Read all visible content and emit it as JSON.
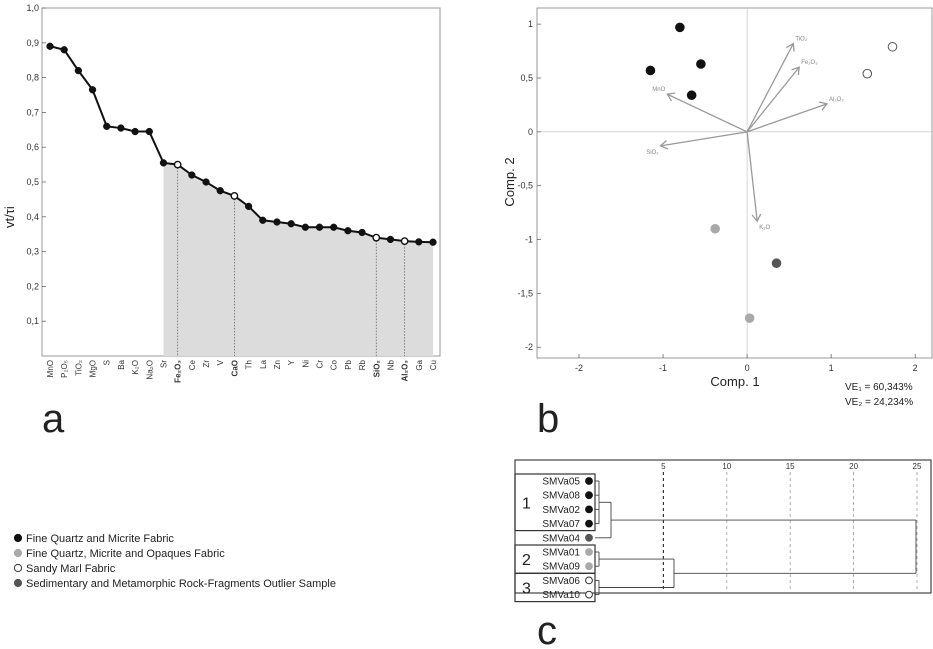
{
  "panels": {
    "a_letter": "a",
    "b_letter": "b",
    "c_letter": "c"
  },
  "colors": {
    "fine_quartz_micrite": "#111111",
    "fine_quartz_opaques": "#a9a9a9",
    "sandy_marl": "#ffffff",
    "outlier": "#555555",
    "shade": "#dcdcdc",
    "vector": "#999999"
  },
  "legend": [
    {
      "label": "Fine Quartz and Micrite Fabric",
      "fill": "#111111"
    },
    {
      "label": "Fine Quartz, Micrite and Opaques Fabric",
      "fill": "#a9a9a9"
    },
    {
      "label": "Sandy Marl Fabric",
      "fill": "#ffffff"
    },
    {
      "label": "Sedimentary and Metamorphic Rock-Fragments Outlier Sample",
      "fill": "#555555"
    }
  ],
  "chart_data": [
    {
      "type": "line",
      "panel": "a",
      "ylabel": "vt/τi",
      "ylim": [
        0,
        1.0
      ],
      "yticks": [
        "1,0",
        "0,9",
        "0,8",
        "0,7",
        "0,6",
        "0,5",
        "0,4",
        "0,3",
        "0,2",
        "0,1"
      ],
      "categories": [
        "MnO",
        "P₂O₅",
        "TiO₂",
        "MgO",
        "S",
        "Ba",
        "K₂O",
        "Na₂O",
        "Sr",
        "Fe₂O₃",
        "Ce",
        "Zr",
        "V",
        "CaO",
        "Th",
        "La",
        "Zn",
        "Y",
        "Ni",
        "Cr",
        "Co",
        "Pb",
        "Rb",
        "SiO₂",
        "Nb",
        "Al₂O₃",
        "Ga",
        "Cu"
      ],
      "bold_categories": [
        "Fe₂O₃",
        "CaO",
        "SiO₂",
        "Al₂O₃"
      ],
      "values": [
        0.89,
        0.88,
        0.82,
        0.765,
        0.66,
        0.655,
        0.645,
        0.645,
        0.555,
        0.55,
        0.52,
        0.5,
        0.475,
        0.46,
        0.43,
        0.39,
        0.385,
        0.38,
        0.37,
        0.37,
        0.37,
        0.36,
        0.355,
        0.34,
        0.335,
        0.33,
        0.328,
        0.327
      ],
      "open_points": [
        9,
        13,
        23,
        25
      ],
      "shaded_from": 8
    },
    {
      "type": "scatter",
      "panel": "b",
      "xlabel": "Comp. 1",
      "ylabel": "Comp. 2",
      "xlim": [
        -2.5,
        2.2
      ],
      "ylim": [
        -2.1,
        1.15
      ],
      "xticks": [
        -2,
        -1,
        0,
        1,
        2
      ],
      "xtick_labels": [
        "-2",
        "-1",
        "0",
        "1",
        "2"
      ],
      "yticks": [
        1,
        0.5,
        0,
        -0.5,
        -1,
        -1.5,
        -2
      ],
      "ytick_labels": [
        "1",
        "0,5",
        "0",
        "-0,5",
        "-1",
        "-1,5",
        "-2"
      ],
      "points": [
        {
          "x": -0.8,
          "y": 0.97,
          "group": "fine_quartz_micrite"
        },
        {
          "x": -1.15,
          "y": 0.57,
          "group": "fine_quartz_micrite"
        },
        {
          "x": -0.55,
          "y": 0.63,
          "group": "fine_quartz_micrite"
        },
        {
          "x": -0.66,
          "y": 0.34,
          "group": "fine_quartz_micrite"
        },
        {
          "x": 1.73,
          "y": 0.79,
          "group": "sandy_marl"
        },
        {
          "x": 1.43,
          "y": 0.54,
          "group": "sandy_marl"
        },
        {
          "x": -0.38,
          "y": -0.9,
          "group": "fine_quartz_opaques"
        },
        {
          "x": 0.35,
          "y": -1.22,
          "group": "outlier"
        },
        {
          "x": 0.03,
          "y": -1.73,
          "group": "fine_quartz_opaques"
        }
      ],
      "vectors": [
        {
          "label": "TiO₂",
          "x": 0.55,
          "y": 0.82
        },
        {
          "label": "Fe₂O₃",
          "x": 0.62,
          "y": 0.6
        },
        {
          "label": "Al₂O₃",
          "x": 0.95,
          "y": 0.26
        },
        {
          "label": "MnO",
          "x": -0.95,
          "y": 0.35
        },
        {
          "label": "SiO₂",
          "x": -1.03,
          "y": -0.13
        },
        {
          "label": "K₂O",
          "x": 0.12,
          "y": -0.83
        }
      ],
      "variance_explained": [
        "VE₁ = 60,343%",
        "VE₂ = 24,234%"
      ]
    },
    {
      "type": "dendrogram",
      "panel": "c",
      "scale_ticks": [
        "5",
        "10",
        "15",
        "20",
        "25"
      ],
      "samples": [
        {
          "label": "SMVa05",
          "group": "fine_quartz_micrite"
        },
        {
          "label": "SMVa08",
          "group": "fine_quartz_micrite"
        },
        {
          "label": "SMVa02",
          "group": "fine_quartz_micrite"
        },
        {
          "label": "SMVa07",
          "group": "fine_quartz_micrite"
        },
        {
          "label": "SMVa04",
          "group": "outlier"
        },
        {
          "label": "SMVa01",
          "group": "fine_quartz_opaques"
        },
        {
          "label": "SMVa09",
          "group": "fine_quartz_opaques"
        },
        {
          "label": "SMVa06",
          "group": "sandy_marl"
        },
        {
          "label": "SMVa10",
          "group": "sandy_marl"
        }
      ],
      "clusters": [
        "1",
        "2",
        "3"
      ]
    }
  ]
}
